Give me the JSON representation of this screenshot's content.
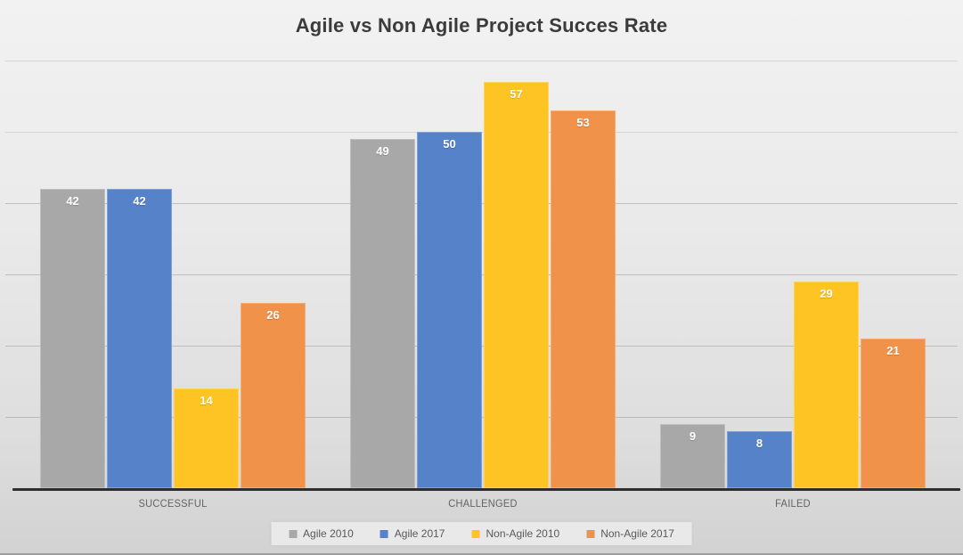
{
  "chart_data": {
    "type": "bar",
    "title": "Agile vs Non Agile Project Succes Rate",
    "categories": [
      "SUCCESSFUL",
      "CHALLENGED",
      "FAILED"
    ],
    "series": [
      {
        "name": "Agile 2010",
        "color": "#a8a8a8",
        "values": [
          42,
          49,
          9
        ]
      },
      {
        "name": "Agile 2017",
        "color": "#5582c8",
        "values": [
          42,
          50,
          8
        ]
      },
      {
        "name": "Non-Agile 2010",
        "color": "#fec424",
        "values": [
          14,
          57,
          29
        ]
      },
      {
        "name": "Non-Agile 2017",
        "color": "#f0924a",
        "values": [
          26,
          53,
          21
        ]
      }
    ],
    "ylim": [
      0,
      60
    ],
    "gridline_interval": 10,
    "grid": "horizontal",
    "y_axis_labels": false,
    "data_labels": "inside-top-white",
    "legend_position": "bottom-center",
    "colors": {
      "title_text": "#3b3b3b",
      "axis_line": "#2e2e2e",
      "category_text": "#636363",
      "legend_text": "#595959",
      "background": "#e5e5e5"
    }
  }
}
